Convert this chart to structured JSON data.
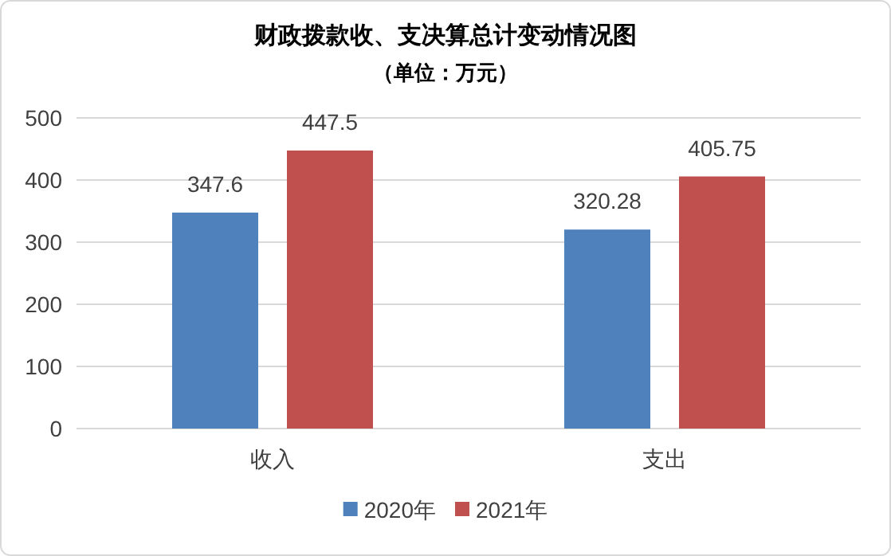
{
  "chart_data": {
    "type": "bar",
    "title": "财政拨款收、支决算总计变动情况图",
    "subtitle": "（单位：万元）",
    "categories": [
      "收入",
      "支出"
    ],
    "series": [
      {
        "name": "2020年",
        "color": "#4f81bd",
        "values": [
          347.6,
          320.28
        ]
      },
      {
        "name": "2021年",
        "color": "#c0504d",
        "values": [
          447.5,
          405.75
        ]
      }
    ],
    "ylim": [
      0,
      500
    ],
    "yticks": [
      0,
      100,
      200,
      300,
      400,
      500
    ],
    "grid": "y",
    "data_labels": true,
    "legend": "bottom"
  }
}
